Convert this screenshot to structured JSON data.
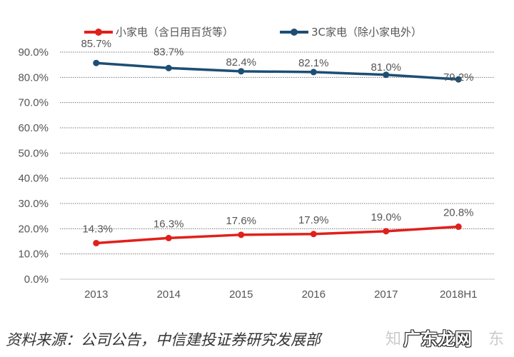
{
  "chart_data": {
    "type": "line",
    "categories": [
      "2013",
      "2014",
      "2015",
      "2016",
      "2017",
      "2018H1"
    ],
    "series": [
      {
        "name": "小家电（含日用百货等）",
        "color": "#e0201b",
        "values": [
          14.3,
          16.3,
          17.6,
          17.9,
          19.0,
          20.8
        ],
        "labels": [
          "14.3%",
          "16.3%",
          "17.6%",
          "17.9%",
          "19.0%",
          "20.8%"
        ]
      },
      {
        "name": "3C家电（除小家电外）",
        "color": "#1d4e74",
        "values": [
          85.7,
          83.7,
          82.4,
          82.1,
          81.0,
          79.2
        ],
        "labels": [
          "85.7%",
          "83.7%",
          "82.4%",
          "82.1%",
          "81.0%",
          "79.2%"
        ]
      }
    ],
    "ylim": [
      0,
      90
    ],
    "yticks": [
      "0.0%",
      "10.0%",
      "20.0%",
      "30.0%",
      "40.0%",
      "50.0%",
      "60.0%",
      "70.0%",
      "80.0%",
      "90.0%"
    ],
    "grid": "horizontal dotted",
    "legend": "top"
  },
  "source": "资料来源：公司公告，中信建投证券研究发展部",
  "watermark": {
    "main": "广东龙网",
    "faint_left": "知",
    "faint_right": "东"
  }
}
